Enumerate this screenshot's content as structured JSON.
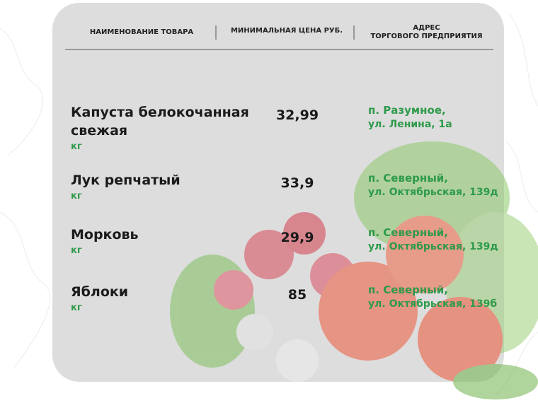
{
  "table": {
    "header": {
      "name": "НАИМЕНОВАНИЕ ТОВАРА",
      "price": "МИНИМАЛЬНАЯ ЦЕНА РУБ.",
      "address": [
        "АДРЕС",
        "ТОРГОВОГО ПРЕДПРИЯТИЯ"
      ]
    },
    "rows": [
      {
        "name": [
          "Капуста белокочанная",
          "свежая"
        ],
        "unit": "кг",
        "price": "32,99",
        "address": [
          "п. Разумное,",
          "ул. Ленина, 1а"
        ]
      },
      {
        "name": [
          "Лук репчатый"
        ],
        "unit": "кг",
        "price": "33,9",
        "address": [
          "п. Северный,",
          "ул. Октябрьская, 139д"
        ]
      },
      {
        "name": [
          "Морковь"
        ],
        "unit": "кг",
        "price": "29,9",
        "address": [
          "п. Северный,",
          "ул. Октябрьская, 139д"
        ]
      },
      {
        "name": [
          "Яблоки"
        ],
        "unit": "кг",
        "price": "85",
        "address": [
          "п. Северный,",
          "ул. Октябрьская, 139б"
        ]
      }
    ]
  }
}
